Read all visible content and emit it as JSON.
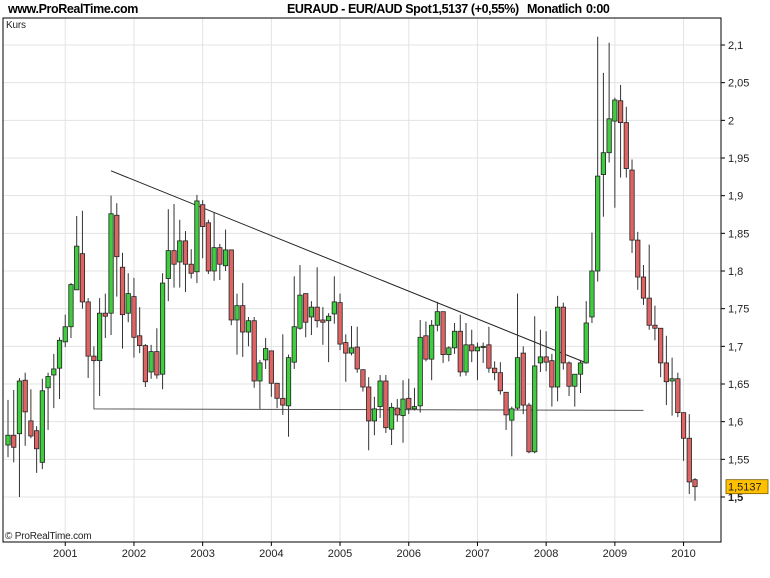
{
  "header": {
    "site": "www.ProRealTime.com",
    "instrument": "EURAUD - EUR/AUD Spot",
    "quote": "1,5137 (+0,55%)",
    "period": "Monatlich",
    "time": "0:00"
  },
  "panel_label": "Kurs",
  "copyright": "© ProRealTime.com",
  "chart_data": {
    "type": "candlestick",
    "title": "EURAUD - EUR/AUD Spot",
    "ylabel": "Kurs",
    "ylim": [
      1.5,
      2.1
    ],
    "y_ticks": [
      "1,5",
      "1,55",
      "1,6",
      "1,65",
      "1,7",
      "1,75",
      "1,8",
      "1,85",
      "1,9",
      "1,95",
      "2",
      "2,05",
      "2,1"
    ],
    "x_ticks": [
      "2001",
      "2002",
      "2003",
      "2004",
      "2005",
      "2006",
      "2007",
      "2008",
      "2009",
      "2010"
    ],
    "grid": true,
    "last_price_label": "1,5137",
    "colors": {
      "up": "#3fcc3f",
      "down": "#de6464",
      "last_price_bg": "#ffc000",
      "grid": "#e3e3e3"
    },
    "candle_fields": [
      "date",
      "open",
      "high",
      "low",
      "close"
    ],
    "candles": [
      [
        "2000-03",
        1.569,
        1.629,
        1.553,
        1.582
      ],
      [
        "2000-04",
        1.582,
        1.642,
        1.546,
        1.566
      ],
      [
        "2000-05",
        1.584,
        1.658,
        1.5,
        1.654
      ],
      [
        "2000-06",
        1.655,
        1.665,
        1.568,
        1.613
      ],
      [
        "2000-07",
        1.601,
        1.643,
        1.578,
        1.581
      ],
      [
        "2000-08",
        1.588,
        1.594,
        1.532,
        1.564
      ],
      [
        "2000-09",
        1.546,
        1.657,
        1.537,
        1.641
      ],
      [
        "2000-10",
        1.645,
        1.665,
        1.589,
        1.66
      ],
      [
        "2000-11",
        1.662,
        1.69,
        1.618,
        1.67
      ],
      [
        "2000-12",
        1.671,
        1.712,
        1.63,
        1.708
      ],
      [
        "2001-01",
        1.706,
        1.742,
        1.699,
        1.726
      ],
      [
        "2001-02",
        1.726,
        1.784,
        1.711,
        1.782
      ],
      [
        "2001-03",
        1.775,
        1.873,
        1.775,
        1.833
      ],
      [
        "2001-04",
        1.823,
        1.88,
        1.75,
        1.759
      ],
      [
        "2001-05",
        1.759,
        1.764,
        1.658,
        1.687
      ],
      [
        "2001-06",
        1.687,
        1.7,
        1.676,
        1.681
      ],
      [
        "2001-07",
        1.681,
        1.764,
        1.634,
        1.744
      ],
      [
        "2001-08",
        1.744,
        1.77,
        1.711,
        1.74
      ],
      [
        "2001-09",
        1.744,
        1.9,
        1.715,
        1.876
      ],
      [
        "2001-10",
        1.874,
        1.89,
        1.766,
        1.819
      ],
      [
        "2001-11",
        1.805,
        1.824,
        1.697,
        1.742
      ],
      [
        "2001-12",
        1.744,
        1.797,
        1.732,
        1.77
      ],
      [
        "2002-01",
        1.766,
        1.791,
        1.685,
        1.712
      ],
      [
        "2002-02",
        1.714,
        1.752,
        1.691,
        1.701
      ],
      [
        "2002-03",
        1.701,
        1.703,
        1.646,
        1.653
      ],
      [
        "2002-04",
        1.666,
        1.702,
        1.657,
        1.693
      ],
      [
        "2002-05",
        1.693,
        1.724,
        1.657,
        1.662
      ],
      [
        "2002-06",
        1.663,
        1.797,
        1.643,
        1.784
      ],
      [
        "2002-07",
        1.79,
        1.882,
        1.76,
        1.827
      ],
      [
        "2002-08",
        1.827,
        1.889,
        1.778,
        1.809
      ],
      [
        "2002-09",
        1.812,
        1.868,
        1.778,
        1.84
      ],
      [
        "2002-10",
        1.84,
        1.853,
        1.772,
        1.809
      ],
      [
        "2002-11",
        1.809,
        1.829,
        1.79,
        1.797
      ],
      [
        "2002-12",
        1.799,
        1.901,
        1.784,
        1.893
      ],
      [
        "2003-01",
        1.888,
        1.894,
        1.817,
        1.859
      ],
      [
        "2003-02",
        1.864,
        1.868,
        1.796,
        1.8
      ],
      [
        "2003-03",
        1.8,
        1.878,
        1.787,
        1.831
      ],
      [
        "2003-04",
        1.831,
        1.836,
        1.788,
        1.809
      ],
      [
        "2003-05",
        1.807,
        1.855,
        1.8,
        1.828
      ],
      [
        "2003-06",
        1.828,
        1.828,
        1.728,
        1.735
      ],
      [
        "2003-07",
        1.735,
        1.77,
        1.689,
        1.754
      ],
      [
        "2003-08",
        1.754,
        1.784,
        1.686,
        1.719
      ],
      [
        "2003-09",
        1.719,
        1.739,
        1.7,
        1.734
      ],
      [
        "2003-10",
        1.734,
        1.739,
        1.645,
        1.654
      ],
      [
        "2003-11",
        1.654,
        1.682,
        1.617,
        1.678
      ],
      [
        "2003-12",
        1.682,
        1.711,
        1.67,
        1.697
      ],
      [
        "2004-01",
        1.694,
        1.694,
        1.633,
        1.651
      ],
      [
        "2004-02",
        1.651,
        1.651,
        1.618,
        1.631
      ],
      [
        "2004-03",
        1.631,
        1.716,
        1.609,
        1.622
      ],
      [
        "2004-04",
        1.621,
        1.689,
        1.58,
        1.685
      ],
      [
        "2004-05",
        1.679,
        1.793,
        1.67,
        1.726
      ],
      [
        "2004-06",
        1.724,
        1.808,
        1.722,
        1.768
      ],
      [
        "2004-07",
        1.77,
        1.77,
        1.712,
        1.732
      ],
      [
        "2004-08",
        1.739,
        1.76,
        1.715,
        1.752
      ],
      [
        "2004-09",
        1.752,
        1.805,
        1.725,
        1.734
      ],
      [
        "2004-10",
        1.735,
        1.752,
        1.702,
        1.732
      ],
      [
        "2004-11",
        1.734,
        1.744,
        1.679,
        1.74
      ],
      [
        "2004-12",
        1.743,
        1.793,
        1.73,
        1.759
      ],
      [
        "2005-01",
        1.758,
        1.77,
        1.695,
        1.703
      ],
      [
        "2005-02",
        1.705,
        1.716,
        1.653,
        1.691
      ],
      [
        "2005-03",
        1.691,
        1.727,
        1.688,
        1.698
      ],
      [
        "2005-04",
        1.699,
        1.726,
        1.665,
        1.67
      ],
      [
        "2005-05",
        1.669,
        1.669,
        1.64,
        1.646
      ],
      [
        "2005-06",
        1.646,
        1.659,
        1.562,
        1.601
      ],
      [
        "2005-07",
        1.601,
        1.633,
        1.582,
        1.617
      ],
      [
        "2005-08",
        1.62,
        1.662,
        1.605,
        1.654
      ],
      [
        "2005-09",
        1.654,
        1.662,
        1.585,
        1.592
      ],
      [
        "2005-10",
        1.59,
        1.625,
        1.569,
        1.619
      ],
      [
        "2005-11",
        1.618,
        1.63,
        1.6,
        1.609
      ],
      [
        "2005-12",
        1.608,
        1.655,
        1.572,
        1.63
      ],
      [
        "2006-01",
        1.631,
        1.657,
        1.61,
        1.617
      ],
      [
        "2006-02",
        1.617,
        1.645,
        1.615,
        1.62
      ],
      [
        "2006-03",
        1.621,
        1.735,
        1.612,
        1.712
      ],
      [
        "2006-04",
        1.714,
        1.733,
        1.68,
        1.683
      ],
      [
        "2006-05",
        1.683,
        1.735,
        1.655,
        1.728
      ],
      [
        "2006-06",
        1.728,
        1.759,
        1.72,
        1.746
      ],
      [
        "2006-07",
        1.746,
        1.746,
        1.678,
        1.689
      ],
      [
        "2006-08",
        1.689,
        1.7,
        1.68,
        1.698
      ],
      [
        "2006-09",
        1.698,
        1.731,
        1.69,
        1.72
      ],
      [
        "2006-10",
        1.72,
        1.742,
        1.66,
        1.666
      ],
      [
        "2006-11",
        1.666,
        1.731,
        1.661,
        1.702
      ],
      [
        "2006-12",
        1.702,
        1.722,
        1.679,
        1.694
      ],
      [
        "2007-01",
        1.694,
        1.705,
        1.655,
        1.699
      ],
      [
        "2007-02",
        1.7,
        1.705,
        1.678,
        1.7
      ],
      [
        "2007-03",
        1.702,
        1.726,
        1.665,
        1.671
      ],
      [
        "2007-04",
        1.671,
        1.68,
        1.655,
        1.665
      ],
      [
        "2007-05",
        1.665,
        1.679,
        1.636,
        1.641
      ],
      [
        "2007-06",
        1.639,
        1.639,
        1.589,
        1.609
      ],
      [
        "2007-07",
        1.602,
        1.62,
        1.554,
        1.617
      ],
      [
        "2007-08",
        1.618,
        1.77,
        1.615,
        1.685
      ],
      [
        "2007-09",
        1.691,
        1.7,
        1.61,
        1.622
      ],
      [
        "2007-10",
        1.622,
        1.625,
        1.558,
        1.56
      ],
      [
        "2007-11",
        1.56,
        1.74,
        1.558,
        1.674
      ],
      [
        "2007-12",
        1.678,
        1.722,
        1.666,
        1.686
      ],
      [
        "2008-01",
        1.686,
        1.72,
        1.667,
        1.679
      ],
      [
        "2008-02",
        1.681,
        1.69,
        1.62,
        1.646
      ],
      [
        "2008-03",
        1.646,
        1.767,
        1.627,
        1.752
      ],
      [
        "2008-04",
        1.752,
        1.758,
        1.669,
        1.678
      ],
      [
        "2008-05",
        1.678,
        1.68,
        1.634,
        1.647
      ],
      [
        "2008-06",
        1.647,
        1.663,
        1.62,
        1.663
      ],
      [
        "2008-07",
        1.663,
        1.682,
        1.638,
        1.678
      ],
      [
        "2008-08",
        1.678,
        1.76,
        1.677,
        1.731
      ],
      [
        "2008-09",
        1.739,
        1.851,
        1.731,
        1.8
      ],
      [
        "2008-10",
        1.8,
        2.111,
        1.786,
        1.926
      ],
      [
        "2008-11",
        1.928,
        2.063,
        1.872,
        1.957
      ],
      [
        "2008-12",
        1.957,
        2.103,
        1.944,
        2.002
      ],
      [
        "2009-01",
        1.999,
        2.03,
        1.884,
        2.027
      ],
      [
        "2009-02",
        2.026,
        2.047,
        1.924,
        1.997
      ],
      [
        "2009-03",
        1.997,
        2.018,
        1.924,
        1.936
      ],
      [
        "2009-04",
        1.934,
        1.948,
        1.824,
        1.841
      ],
      [
        "2009-05",
        1.841,
        1.852,
        1.775,
        1.792
      ],
      [
        "2009-06",
        1.792,
        1.808,
        1.755,
        1.764
      ],
      [
        "2009-07",
        1.764,
        1.835,
        1.722,
        1.728
      ],
      [
        "2009-08",
        1.728,
        1.754,
        1.708,
        1.724
      ],
      [
        "2009-09",
        1.724,
        1.724,
        1.659,
        1.678
      ],
      [
        "2009-10",
        1.678,
        1.714,
        1.622,
        1.653
      ],
      [
        "2009-11",
        1.654,
        1.685,
        1.608,
        1.657
      ],
      [
        "2009-12",
        1.657,
        1.665,
        1.606,
        1.612
      ],
      [
        "2010-01",
        1.612,
        1.612,
        1.548,
        1.578
      ],
      [
        "2010-02",
        1.578,
        1.61,
        1.504,
        1.52
      ],
      [
        "2010-03",
        1.523,
        1.525,
        1.495,
        1.5137
      ]
    ],
    "annotations": [
      {
        "type": "trendline",
        "points": [
          [
            "2001-09",
            1.933
          ],
          [
            "2008-08",
            1.678
          ]
        ]
      },
      {
        "type": "support-line",
        "points": [
          [
            "2001-06",
            1.676
          ],
          [
            "2001-06",
            1.617
          ],
          [
            "2009-06",
            1.615
          ]
        ]
      }
    ]
  }
}
